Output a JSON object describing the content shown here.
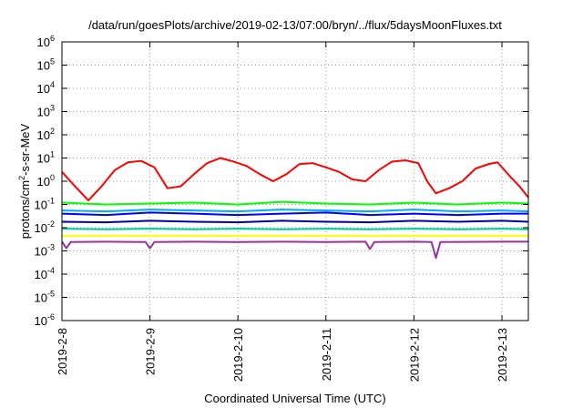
{
  "chart_data": {
    "type": "line",
    "title": "/data/run/goesPlots/archive/2019-02-13/07:00/bryn/../flux/5daysMoonFluxes.txt",
    "xlabel": "Coordinated Universal Time (UTC)",
    "ylabel": {
      "pre": "protons/cm",
      "sup": "2",
      "post": "-s-sr-MeV"
    },
    "y_scale": "log",
    "ylim_exp": [
      -6,
      6
    ],
    "y_ticks": [
      {
        "exp": -6,
        "label": "10",
        "sup": "-6"
      },
      {
        "exp": -5,
        "label": "10",
        "sup": "-5"
      },
      {
        "exp": -4,
        "label": "10",
        "sup": "-4"
      },
      {
        "exp": -3,
        "label": "10",
        "sup": "-3"
      },
      {
        "exp": -2,
        "label": "10",
        "sup": "-2"
      },
      {
        "exp": -1,
        "label": "10",
        "sup": "-1"
      },
      {
        "exp": 0,
        "label": "10",
        "sup": "0"
      },
      {
        "exp": 1,
        "label": "10",
        "sup": "1"
      },
      {
        "exp": 2,
        "label": "10",
        "sup": "2"
      },
      {
        "exp": 3,
        "label": "10",
        "sup": "3"
      },
      {
        "exp": 4,
        "label": "10",
        "sup": "4"
      },
      {
        "exp": 5,
        "label": "10",
        "sup": "5"
      },
      {
        "exp": 6,
        "label": "10",
        "sup": "6"
      }
    ],
    "xlim_days": [
      0,
      5.3
    ],
    "x_ticks": [
      {
        "day": 0,
        "label": "2019-2-8"
      },
      {
        "day": 1,
        "label": "2019-2-9"
      },
      {
        "day": 2,
        "label": "2019-2-10"
      },
      {
        "day": 3,
        "label": "2019-2-11"
      },
      {
        "day": 4,
        "label": "2019-2-12"
      },
      {
        "day": 5,
        "label": "2019-2-13"
      }
    ],
    "grid": true,
    "series": [
      {
        "color": "#ff0000",
        "values": [
          [
            0,
            2.5
          ],
          [
            0.15,
            0.6
          ],
          [
            0.3,
            0.15
          ],
          [
            0.45,
            0.6
          ],
          [
            0.6,
            3.0
          ],
          [
            0.75,
            6.5
          ],
          [
            0.9,
            7.5
          ],
          [
            1.05,
            4.0
          ],
          [
            1.2,
            0.5
          ],
          [
            1.35,
            0.6
          ],
          [
            1.5,
            2.0
          ],
          [
            1.65,
            6.0
          ],
          [
            1.8,
            10
          ],
          [
            1.95,
            7.0
          ],
          [
            2.1,
            4.5
          ],
          [
            2.25,
            2.0
          ],
          [
            2.4,
            1.0
          ],
          [
            2.55,
            2.0
          ],
          [
            2.7,
            5.5
          ],
          [
            2.85,
            6.0
          ],
          [
            3.0,
            4.0
          ],
          [
            3.15,
            2.5
          ],
          [
            3.3,
            1.2
          ],
          [
            3.45,
            1.0
          ],
          [
            3.6,
            3.0
          ],
          [
            3.75,
            7.0
          ],
          [
            3.9,
            8.0
          ],
          [
            4.05,
            6.0
          ],
          [
            4.15,
            1.0
          ],
          [
            4.25,
            0.3
          ],
          [
            4.4,
            0.5
          ],
          [
            4.55,
            1.0
          ],
          [
            4.7,
            3.5
          ],
          [
            4.85,
            5.5
          ],
          [
            4.95,
            6.5
          ],
          [
            5.1,
            1.5
          ],
          [
            5.2,
            0.6
          ],
          [
            5.3,
            0.2
          ]
        ]
      },
      {
        "color": "#00ff00",
        "values": [
          [
            0,
            0.12
          ],
          [
            0.5,
            0.1
          ],
          [
            1,
            0.11
          ],
          [
            1.5,
            0.12
          ],
          [
            2,
            0.1
          ],
          [
            2.5,
            0.13
          ],
          [
            3,
            0.11
          ],
          [
            3.5,
            0.1
          ],
          [
            4,
            0.12
          ],
          [
            4.5,
            0.1
          ],
          [
            5,
            0.12
          ],
          [
            5.3,
            0.11
          ]
        ]
      },
      {
        "color": "#00aaff",
        "values": [
          [
            0,
            0.055
          ],
          [
            0.5,
            0.05
          ],
          [
            1,
            0.06
          ],
          [
            1.5,
            0.055
          ],
          [
            2,
            0.05
          ],
          [
            2.5,
            0.06
          ],
          [
            3,
            0.055
          ],
          [
            3.5,
            0.05
          ],
          [
            4,
            0.06
          ],
          [
            4.5,
            0.05
          ],
          [
            5,
            0.055
          ],
          [
            5.3,
            0.05
          ]
        ]
      },
      {
        "color": "#0000ff",
        "values": [
          [
            0,
            0.04
          ],
          [
            0.5,
            0.035
          ],
          [
            1,
            0.045
          ],
          [
            1.5,
            0.04
          ],
          [
            2,
            0.035
          ],
          [
            2.5,
            0.04
          ],
          [
            3,
            0.045
          ],
          [
            3.5,
            0.035
          ],
          [
            4,
            0.04
          ],
          [
            4.5,
            0.035
          ],
          [
            5,
            0.04
          ],
          [
            5.3,
            0.04
          ]
        ]
      },
      {
        "color": "#0000aa",
        "values": [
          [
            0,
            0.018
          ],
          [
            0.5,
            0.017
          ],
          [
            1,
            0.02
          ],
          [
            1.5,
            0.018
          ],
          [
            2,
            0.017
          ],
          [
            2.5,
            0.02
          ],
          [
            3,
            0.018
          ],
          [
            3.5,
            0.017
          ],
          [
            4,
            0.02
          ],
          [
            4.5,
            0.018
          ],
          [
            5,
            0.02
          ],
          [
            5.3,
            0.018
          ]
        ]
      },
      {
        "color": "#00cc99",
        "values": [
          [
            0,
            0.009
          ],
          [
            0.5,
            0.0085
          ],
          [
            1,
            0.009
          ],
          [
            1.5,
            0.0085
          ],
          [
            2,
            0.009
          ],
          [
            2.5,
            0.0085
          ],
          [
            3,
            0.009
          ],
          [
            3.5,
            0.0085
          ],
          [
            4,
            0.009
          ],
          [
            4.5,
            0.0085
          ],
          [
            5,
            0.009
          ],
          [
            5.3,
            0.0085
          ]
        ]
      },
      {
        "color": "#ffff00",
        "values": [
          [
            0,
            0.0045
          ],
          [
            1,
            0.0045
          ],
          [
            2,
            0.0045
          ],
          [
            3,
            0.0045
          ],
          [
            4,
            0.0045
          ],
          [
            5,
            0.0045
          ],
          [
            5.3,
            0.0045
          ]
        ]
      },
      {
        "color": "#993399",
        "values": [
          [
            0,
            0.0025
          ],
          [
            0.05,
            0.0013
          ],
          [
            0.1,
            0.0024
          ],
          [
            0.5,
            0.0025
          ],
          [
            0.95,
            0.0024
          ],
          [
            1.0,
            0.0013
          ],
          [
            1.05,
            0.0024
          ],
          [
            1.5,
            0.0025
          ],
          [
            2,
            0.0024
          ],
          [
            2.5,
            0.0025
          ],
          [
            3,
            0.0024
          ],
          [
            3.45,
            0.0025
          ],
          [
            3.5,
            0.0012
          ],
          [
            3.55,
            0.0024
          ],
          [
            4,
            0.0025
          ],
          [
            4.2,
            0.0024
          ],
          [
            4.25,
            0.0005
          ],
          [
            4.3,
            0.0024
          ],
          [
            5,
            0.0025
          ],
          [
            5.3,
            0.0025
          ]
        ]
      }
    ]
  }
}
